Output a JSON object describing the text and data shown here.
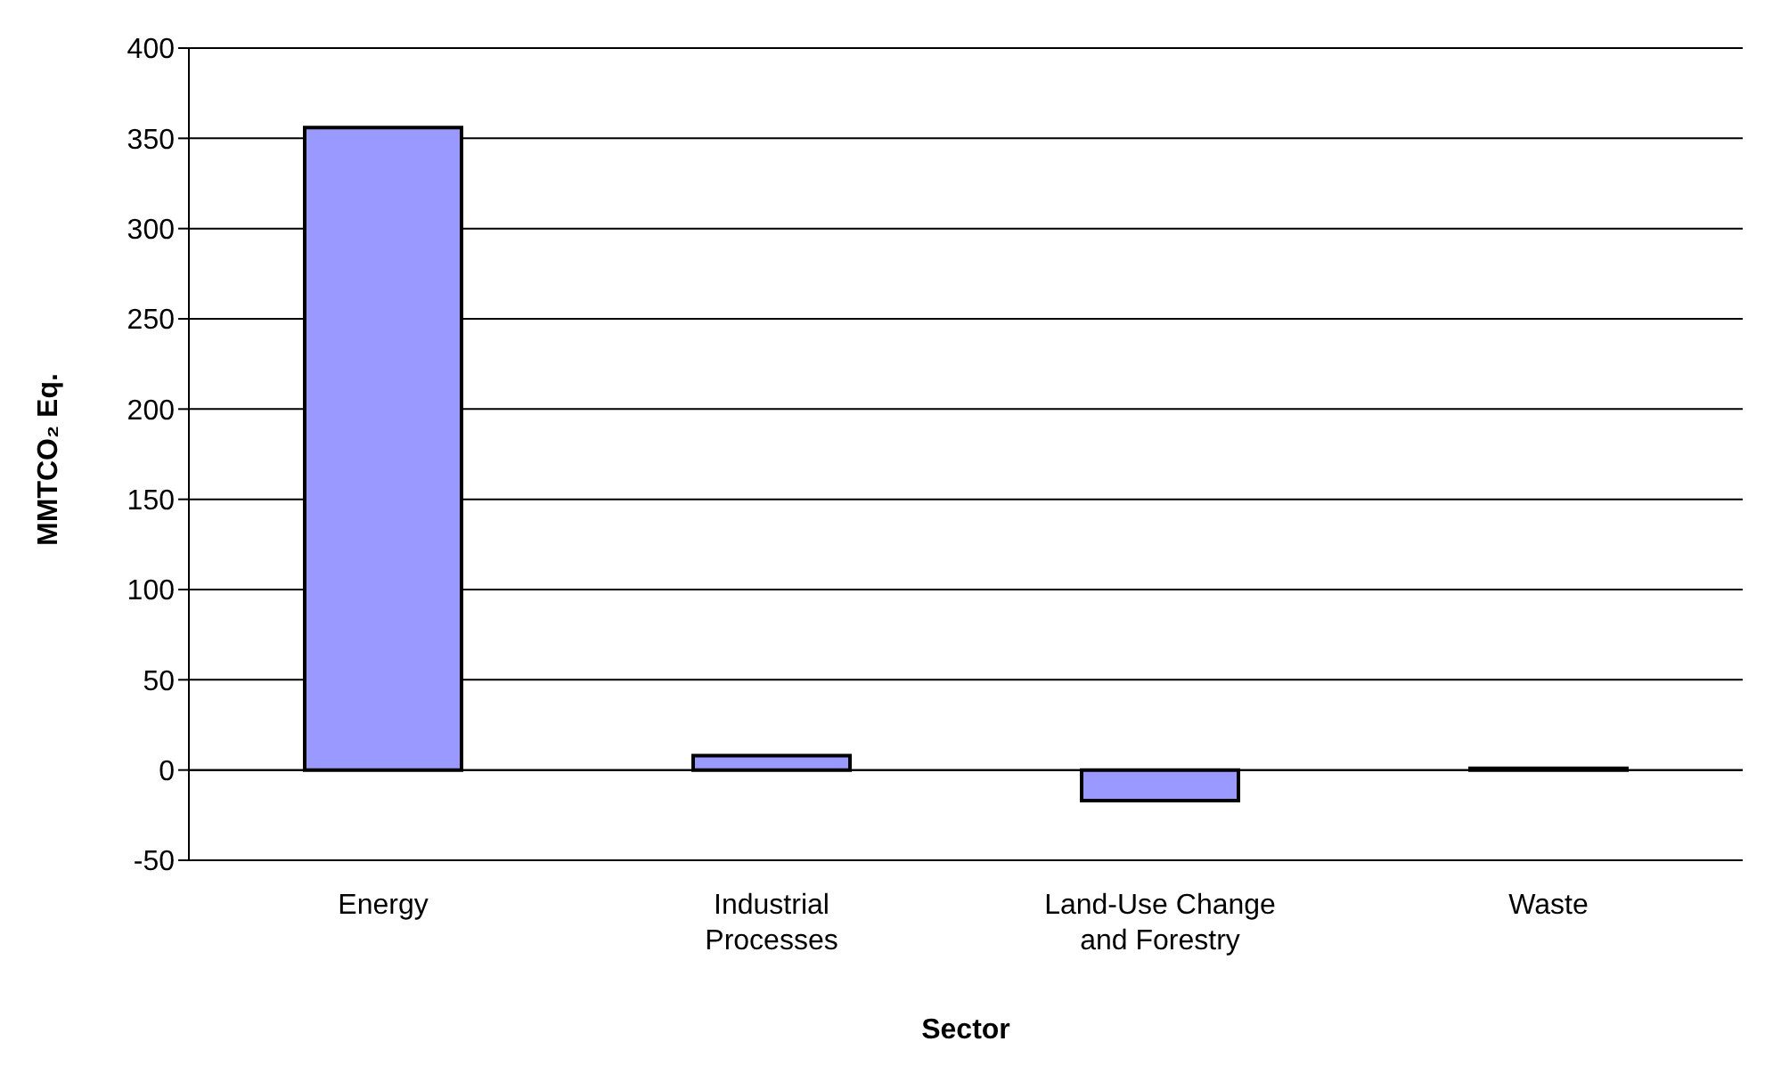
{
  "chart_data": {
    "type": "bar",
    "xlabel": "Sector",
    "ylabel": "MMTCO₂ Eq.",
    "categories": [
      "Energy",
      "Industrial Processes",
      "Land-Use Change and Forestry",
      "Waste"
    ],
    "values": [
      356,
      8,
      -17,
      1
    ],
    "color": "#9999ff",
    "ylim": [
      -50,
      400
    ],
    "yticks": [
      -50,
      0,
      50,
      100,
      150,
      200,
      250,
      300,
      350,
      400
    ],
    "grid": "y",
    "legend": false
  }
}
